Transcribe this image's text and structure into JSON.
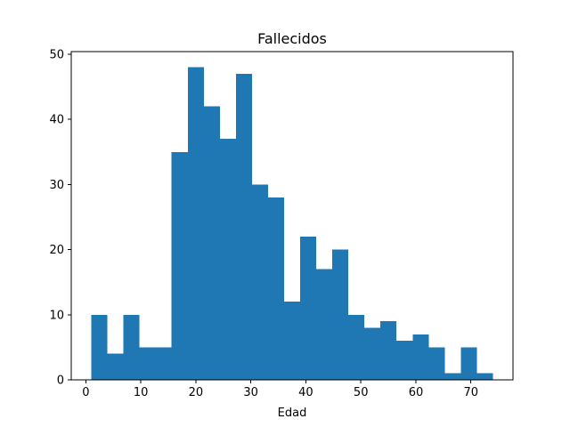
{
  "chart_data": {
    "type": "bar",
    "title": "Fallecidos",
    "xlabel": "Edad",
    "ylabel": "",
    "xlim": [
      -2.65,
      77.65
    ],
    "ylim": [
      0,
      50.4
    ],
    "xticks": [
      0,
      10,
      20,
      30,
      40,
      50,
      60,
      70
    ],
    "yticks": [
      0,
      10,
      20,
      30,
      40,
      50
    ],
    "bin_edges": [
      1.0,
      3.92,
      6.84,
      9.76,
      12.68,
      15.6,
      18.52,
      21.44,
      24.36,
      27.28,
      30.2,
      33.12,
      36.04,
      38.96,
      41.88,
      44.8,
      47.72,
      50.64,
      53.56,
      56.48,
      59.4,
      62.32,
      65.24,
      68.16,
      71.08,
      74.0
    ],
    "values": [
      10,
      4,
      10,
      5,
      5,
      35,
      48,
      42,
      37,
      47,
      30,
      28,
      12,
      22,
      17,
      20,
      10,
      8,
      9,
      6,
      7,
      5,
      1,
      5,
      1
    ],
    "bar_color": "#1f77b4",
    "grid": false
  }
}
